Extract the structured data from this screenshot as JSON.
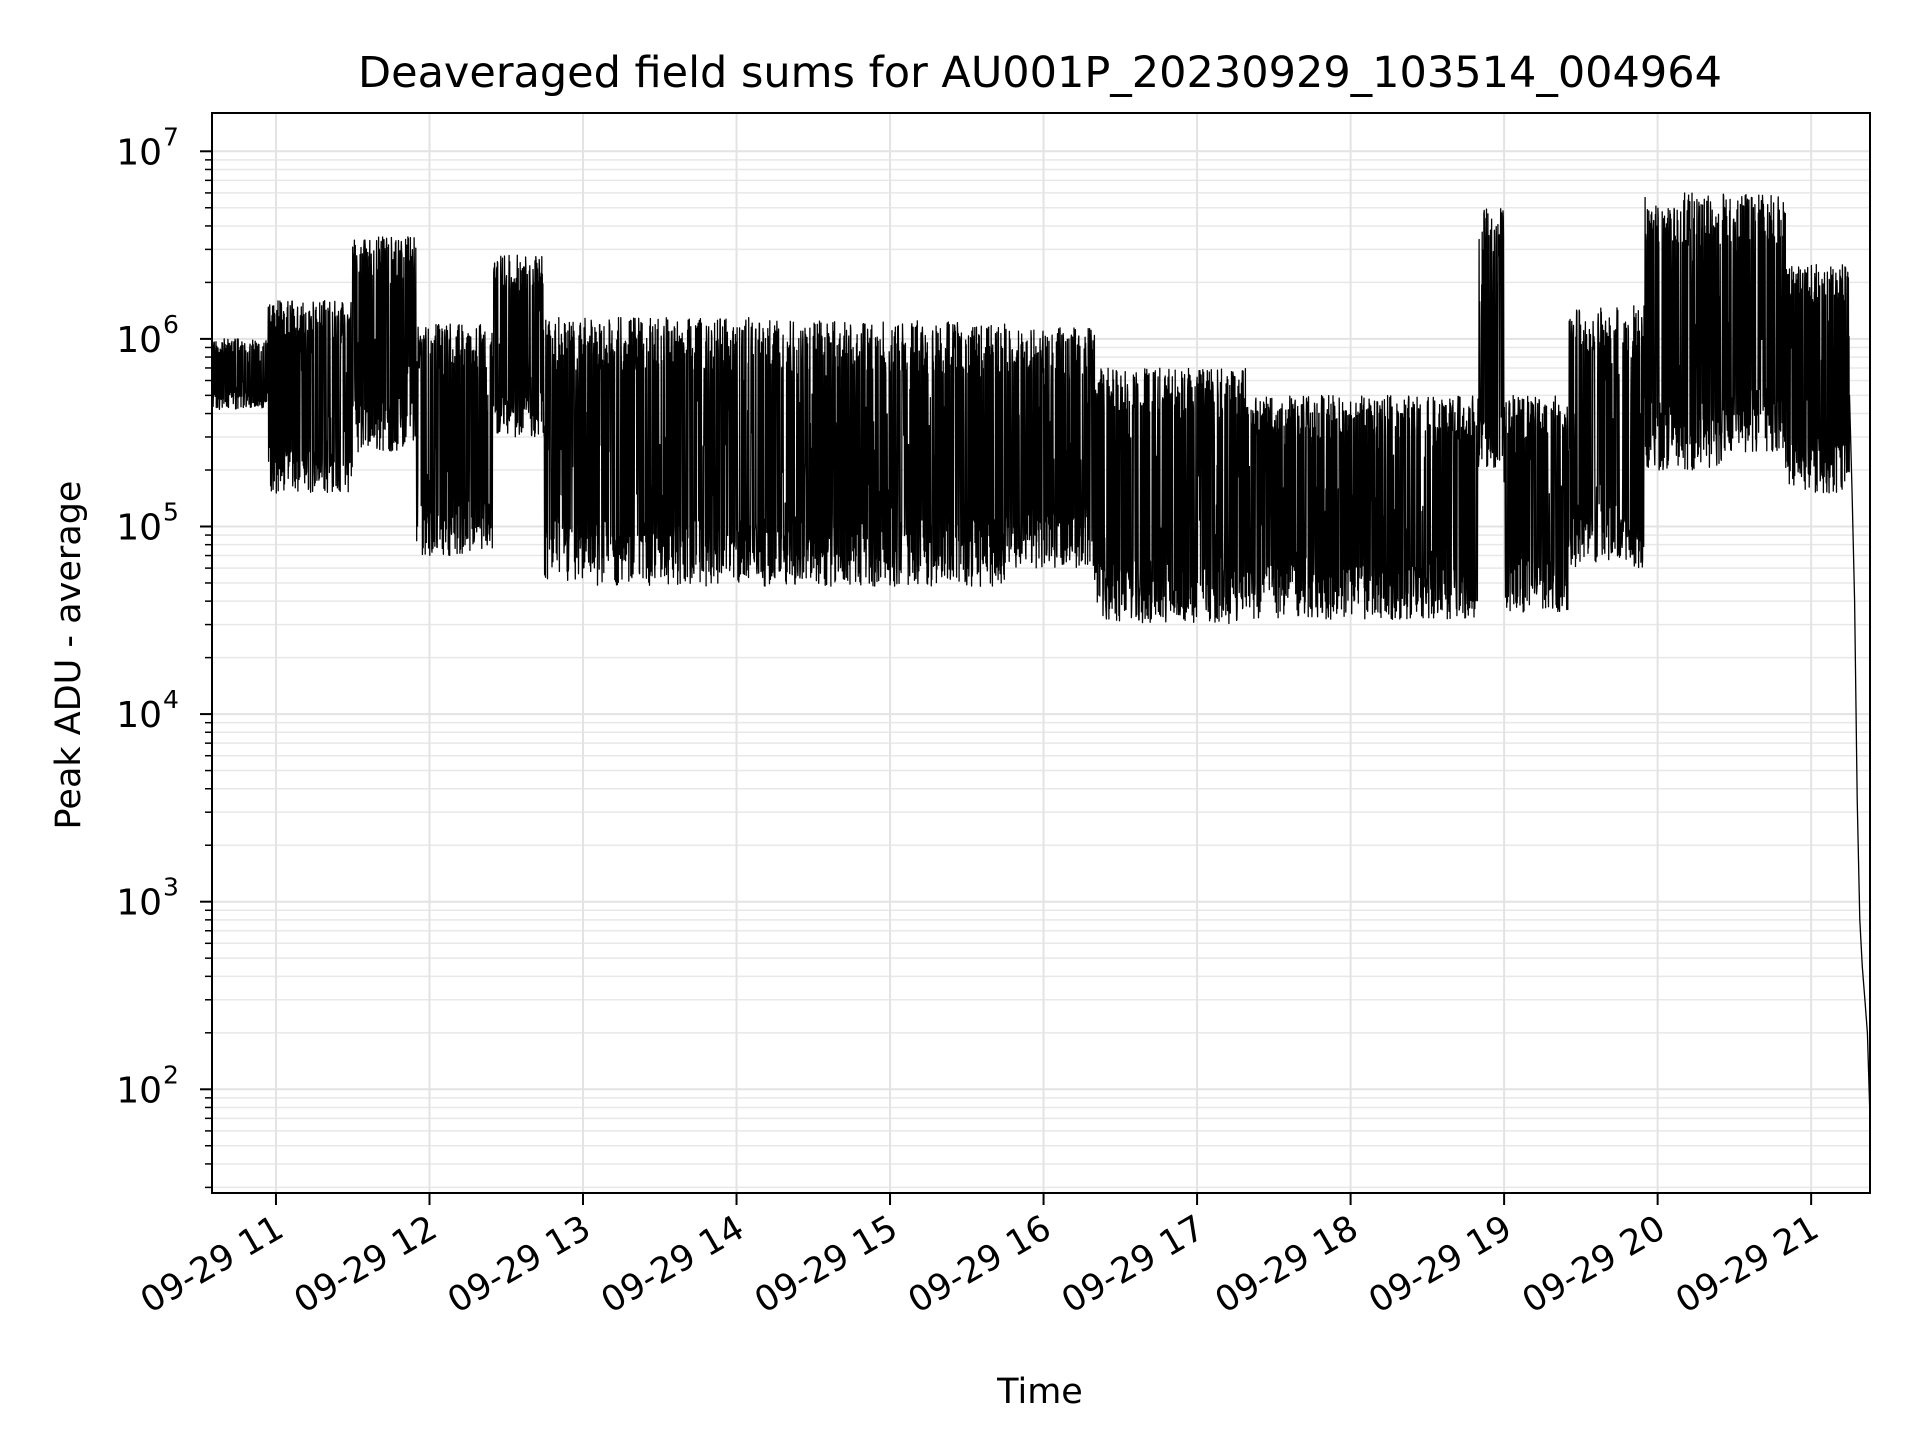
{
  "chart_data": {
    "type": "line",
    "title": "Deaveraged field sums for AU001P_20230929_103514_004964",
    "xlabel": "Time",
    "ylabel": "Peak ADU - average",
    "y_scale": "log",
    "ylim": [
      28,
      16000000
    ],
    "xlim": [
      "09-29 10:35",
      "09-29 21:23"
    ],
    "grid": true,
    "x_ticks": [
      {
        "t": "09-29 11:00",
        "label": "09-29 11"
      },
      {
        "t": "09-29 12:00",
        "label": "09-29 12"
      },
      {
        "t": "09-29 13:00",
        "label": "09-29 13"
      },
      {
        "t": "09-29 14:00",
        "label": "09-29 14"
      },
      {
        "t": "09-29 15:00",
        "label": "09-29 15"
      },
      {
        "t": "09-29 16:00",
        "label": "09-29 16"
      },
      {
        "t": "09-29 17:00",
        "label": "09-29 17"
      },
      {
        "t": "09-29 18:00",
        "label": "09-29 18"
      },
      {
        "t": "09-29 19:00",
        "label": "09-29 19"
      },
      {
        "t": "09-29 20:00",
        "label": "09-29 20"
      },
      {
        "t": "09-29 21:00",
        "label": "09-29 21"
      }
    ],
    "y_ticks": [
      {
        "value": 100,
        "base": "10",
        "exp": "2"
      },
      {
        "value": 1000,
        "base": "10",
        "exp": "3"
      },
      {
        "value": 10000,
        "base": "10",
        "exp": "4"
      },
      {
        "value": 100000,
        "base": "10",
        "exp": "5"
      },
      {
        "value": 1000000,
        "base": "10",
        "exp": "6"
      },
      {
        "value": 10000000,
        "base": "10",
        "exp": "7"
      }
    ],
    "series": [
      {
        "color": "#000000",
        "segments": [
          {
            "start": "09-29 10:35",
            "end": "09-29 10:57",
            "low": 420000,
            "high": 1000000
          },
          {
            "start": "09-29 10:57",
            "end": "09-29 11:30",
            "low": 150000,
            "high": 1600000
          },
          {
            "start": "09-29 11:30",
            "end": "09-29 11:55",
            "low": 250000,
            "high": 3500000
          },
          {
            "start": "09-29 11:55",
            "end": "09-29 12:25",
            "low": 70000,
            "high": 1200000
          },
          {
            "start": "09-29 12:25",
            "end": "09-29 12:45",
            "low": 300000,
            "high": 2800000
          },
          {
            "start": "09-29 12:45",
            "end": "09-29 14:20",
            "low": 48000,
            "high": 1300000
          },
          {
            "start": "09-29 14:20",
            "end": "09-29 15:45",
            "low": 48000,
            "high": 1250000
          },
          {
            "start": "09-29 15:45",
            "end": "09-29 16:20",
            "low": 60000,
            "high": 1150000
          },
          {
            "start": "09-29 16:20",
            "end": "09-29 17:20",
            "low": 30000,
            "high": 700000
          },
          {
            "start": "09-29 17:20",
            "end": "09-29 18:50",
            "low": 32000,
            "high": 500000
          },
          {
            "start": "09-29 18:50",
            "end": "09-29 19:00",
            "low": 200000,
            "high": 5000000
          },
          {
            "start": "09-29 19:00",
            "end": "09-29 19:25",
            "low": 35000,
            "high": 500000
          },
          {
            "start": "09-29 19:25",
            "end": "09-29 19:55",
            "low": 60000,
            "high": 1500000
          },
          {
            "start": "09-29 19:55",
            "end": "09-29 20:25",
            "low": 200000,
            "high": 6000000
          },
          {
            "start": "09-29 20:25",
            "end": "09-29 20:50",
            "low": 250000,
            "high": 6000000
          },
          {
            "start": "09-29 20:50",
            "end": "09-29 21:15",
            "low": 150000,
            "high": 2500000
          }
        ],
        "tail": [
          {
            "t": "09-29 21:15",
            "v": 500000
          },
          {
            "t": "09-29 21:16",
            "v": 150000
          },
          {
            "t": "09-29 21:17",
            "v": 40000
          },
          {
            "t": "09-29 21:18",
            "v": 3500
          },
          {
            "t": "09-29 21:19",
            "v": 800
          },
          {
            "t": "09-29 21:20",
            "v": 450
          },
          {
            "t": "09-29 21:21",
            "v": 300
          },
          {
            "t": "09-29 21:22",
            "v": 200
          },
          {
            "t": "09-29 21:23",
            "v": 70
          }
        ]
      }
    ]
  }
}
